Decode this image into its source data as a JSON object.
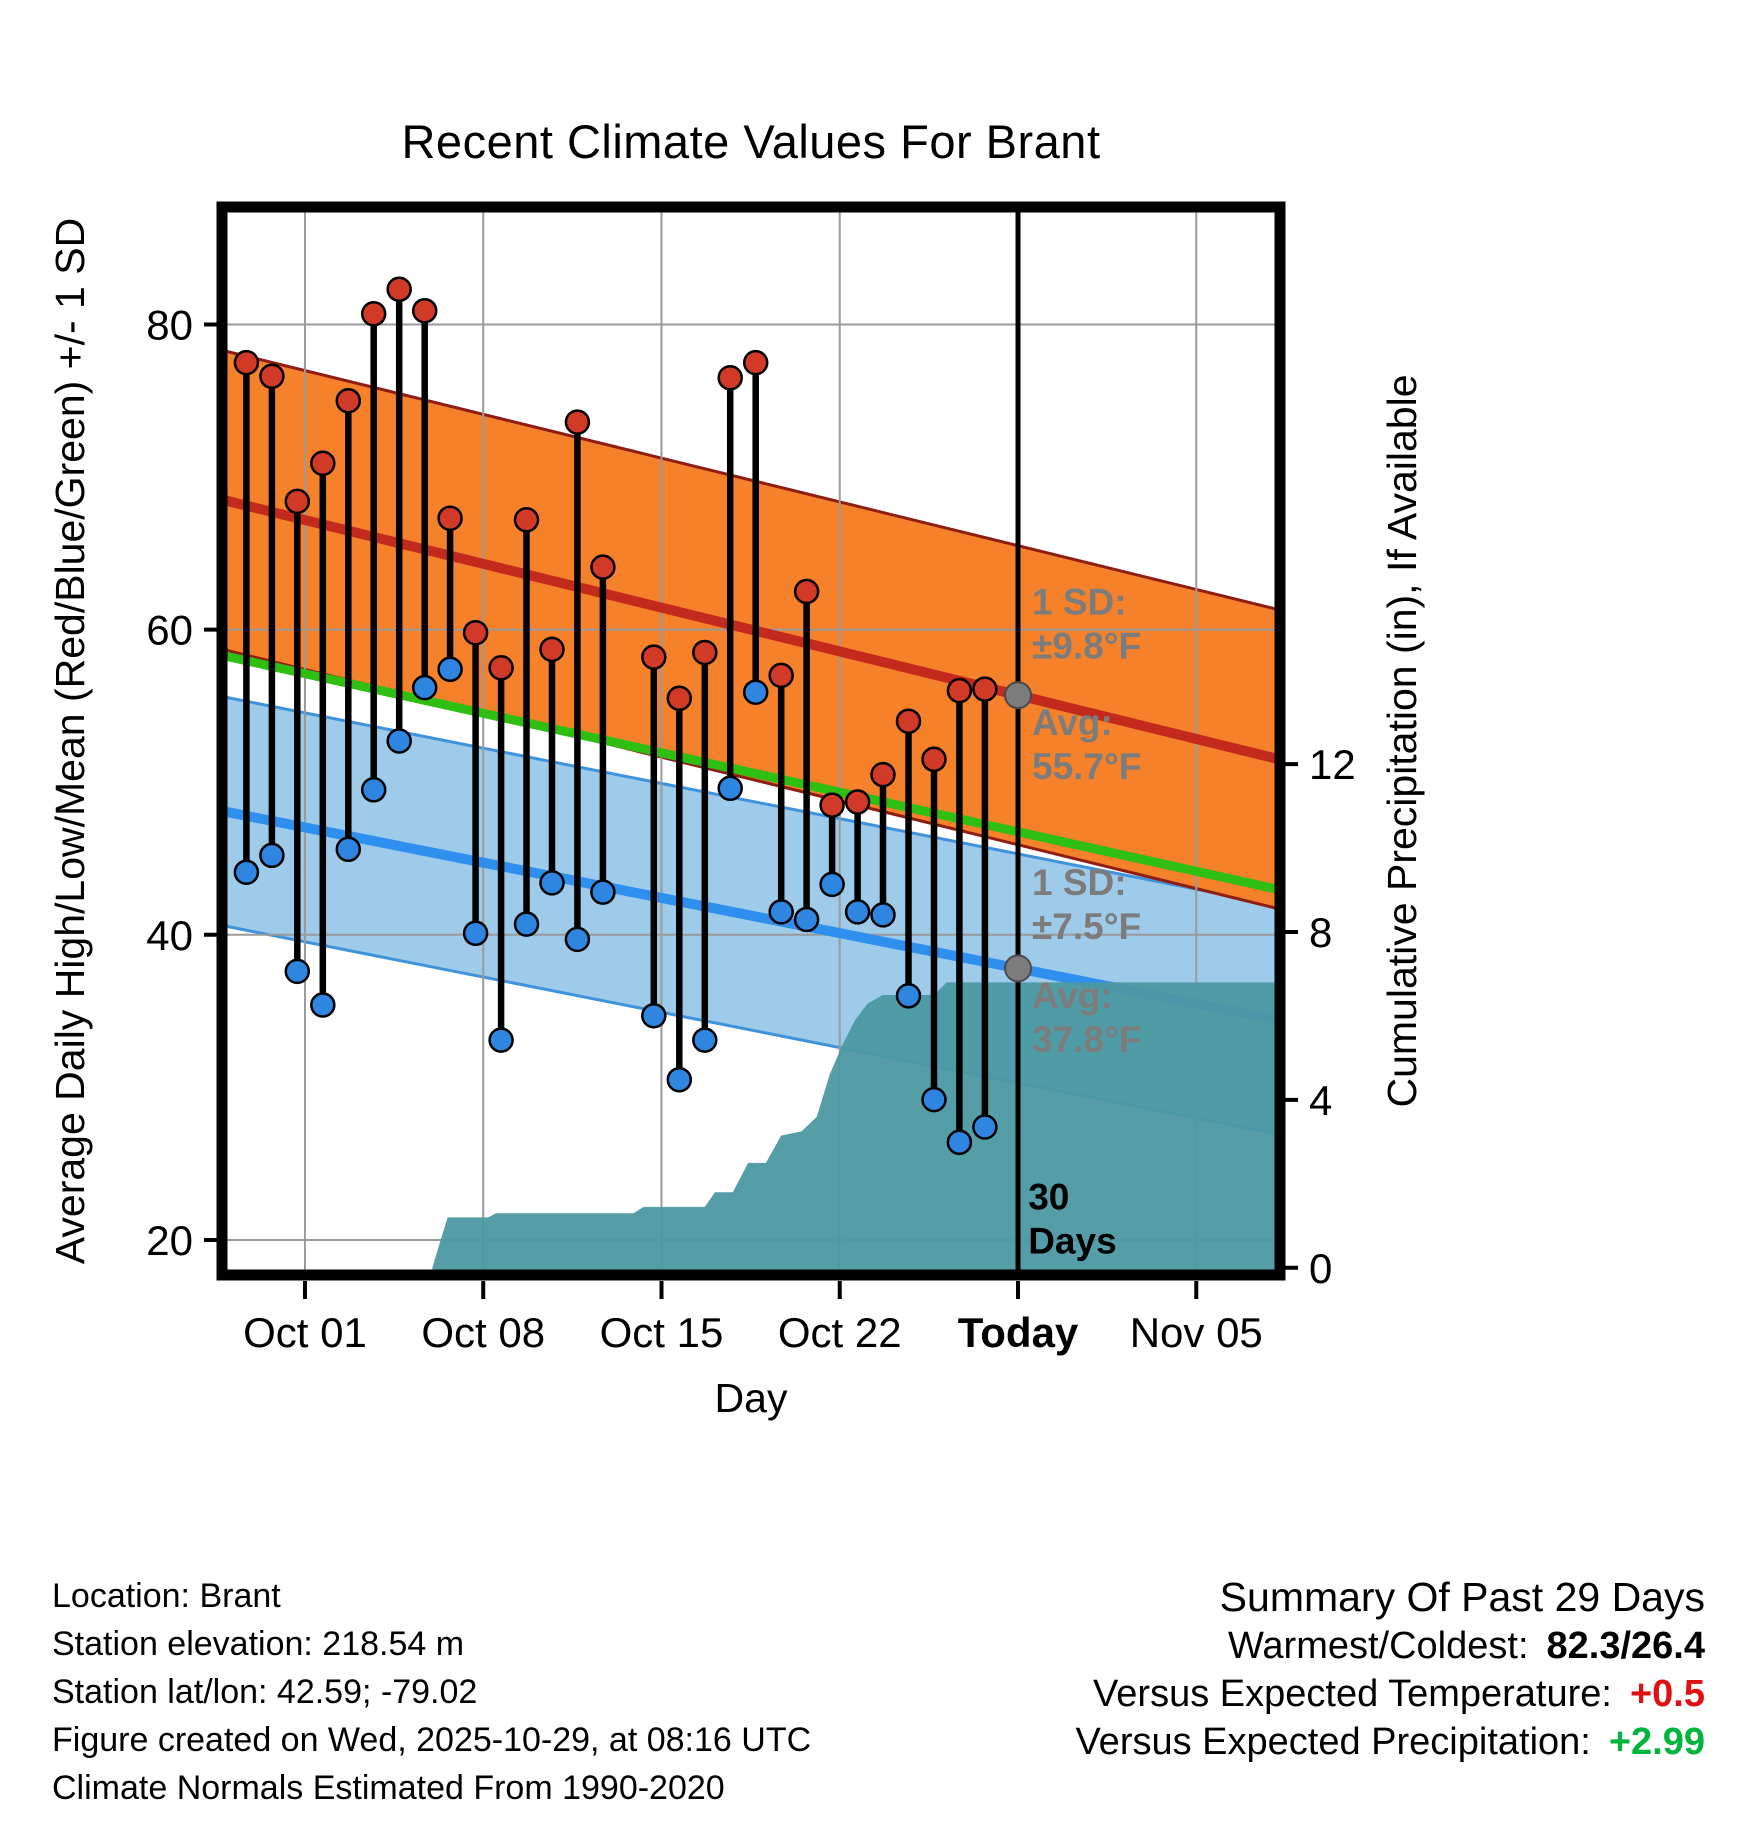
{
  "chart_data": {
    "type": "composite-climate",
    "title": "Recent Climate Values For Brant",
    "xlabel": "Day",
    "ylabel_left": "Average Daily High/Low/Mean (Red/Blue/Green) +/- 1 SD",
    "ylabel_right": "Cumulative Precipitation (in), If Available",
    "xlim_days": [
      -3.14,
      38.17
    ],
    "ylim_left": [
      17.9,
      87.5
    ],
    "ylim_right": [
      -0.1,
      25.2
    ],
    "x_ticks": [
      {
        "day": 0,
        "label": "Oct 01",
        "bold": false
      },
      {
        "day": 7,
        "label": "Oct 08",
        "bold": false
      },
      {
        "day": 14,
        "label": "Oct 15",
        "bold": false
      },
      {
        "day": 21,
        "label": "Oct 22",
        "bold": false
      },
      {
        "day": 28,
        "label": "Today",
        "bold": true
      },
      {
        "day": 35,
        "label": "Nov 05",
        "bold": false
      }
    ],
    "left_ticks": [
      20,
      40,
      60,
      80
    ],
    "right_ticks": [
      0,
      4,
      8,
      12
    ],
    "today_day": 28,
    "daily": {
      "days": [
        -2.3,
        -1.3,
        -0.3,
        0.7,
        1.7,
        2.7,
        3.7,
        4.7,
        5.7,
        6.7,
        7.7,
        8.7,
        9.7,
        10.7,
        11.7,
        13.7,
        14.7,
        15.7,
        16.7,
        17.7,
        18.7,
        19.7,
        20.7,
        21.7,
        22.7,
        23.7,
        24.7,
        25.7,
        26.7
      ],
      "high": [
        77.5,
        76.6,
        68.4,
        70.9,
        75.0,
        80.7,
        82.3,
        80.9,
        67.3,
        59.8,
        57.5,
        67.2,
        58.7,
        73.6,
        64.1,
        58.2,
        55.5,
        58.5,
        76.5,
        77.5,
        57.0,
        62.5,
        48.5,
        48.7,
        50.5,
        54.0,
        51.5,
        56.0,
        56.1
      ],
      "low": [
        44.1,
        45.2,
        37.6,
        35.4,
        45.6,
        49.5,
        52.7,
        56.2,
        57.4,
        40.1,
        33.1,
        40.7,
        43.4,
        39.7,
        42.8,
        34.7,
        30.5,
        33.1,
        49.6,
        55.9,
        41.5,
        41.0,
        43.3,
        41.5,
        41.3,
        36.0,
        29.2,
        26.4,
        27.4
      ]
    },
    "normals": {
      "high": {
        "avg_today": 55.7,
        "sd": 9.8,
        "slope_per_day": -0.41
      },
      "low": {
        "avg_today": 37.8,
        "sd": 7.5,
        "slope_per_day": -0.33
      }
    },
    "precip_cumulative": {
      "days": [
        5.0,
        5.3,
        5.6,
        7.2,
        7.5,
        12.9,
        13.3,
        15.7,
        16.1,
        16.8,
        17.4,
        18.1,
        18.7,
        19.5,
        20.1,
        20.6,
        21.1,
        21.6,
        22.1,
        22.7,
        24.7,
        25.2,
        38.17
      ],
      "inches": [
        0.0,
        0.6,
        1.2,
        1.2,
        1.3,
        1.3,
        1.45,
        1.45,
        1.8,
        1.8,
        2.5,
        2.5,
        3.15,
        3.25,
        3.6,
        4.6,
        5.3,
        5.9,
        6.3,
        6.5,
        6.5,
        6.8,
        6.8
      ]
    },
    "annotations": [
      {
        "lines": [
          "1 SD:",
          "±9.8°F"
        ],
        "day": 28.55,
        "temp": 61.0,
        "color": "#7c7c7c",
        "bold": true
      },
      {
        "lines": [
          "Avg:",
          "55.7°F"
        ],
        "day": 28.55,
        "temp": 53.1,
        "color": "#7c7c7c",
        "bold": true
      },
      {
        "lines": [
          "1 SD:",
          "±7.5°F"
        ],
        "day": 28.55,
        "temp": 42.6,
        "color": "#7c7c7c",
        "bold": true
      },
      {
        "lines": [
          "Avg:",
          "37.8°F"
        ],
        "day": 28.55,
        "temp": 35.2,
        "color": "#7c7c7c",
        "bold": true
      },
      {
        "lines": [
          "30",
          "Days"
        ],
        "day": 28.4,
        "temp": 22.0,
        "color": "#000000",
        "bold": true
      }
    ],
    "colors": {
      "high_band": "#F5812B",
      "high_band_edge": "#8F1D14",
      "high_line": "#C3291D",
      "high_dot": "#D23A28",
      "low_band": "#9FCBEA",
      "low_band_edge": "#3F93DC",
      "low_line": "#2E8FEF",
      "low_dot": "#2F86E0",
      "mean_line": "#2FBE12",
      "precip_fill": "#4C99A2",
      "grid": "#9A9A9A",
      "avg_marker": "#7C7C7C"
    }
  },
  "footer": {
    "lines": [
      "Location: Brant",
      "Station elevation: 218.54 m",
      "Station lat/lon: 42.59; -79.02",
      "Figure created on Wed, 2025-10-29, at 08:16 UTC",
      "Climate Normals Estimated From 1990-2020"
    ]
  },
  "summary": {
    "title": "Summary Of Past 29 Days",
    "rows": [
      {
        "label": "Warmest/Coldest:",
        "value": "82.3/26.4",
        "color": "#000000"
      },
      {
        "label": "Versus Expected Temperature:",
        "value": "+0.5",
        "color": "#DD1111"
      },
      {
        "label": "Versus Expected Precipitation:",
        "value": "+2.99",
        "color": "#00B43C"
      }
    ]
  }
}
